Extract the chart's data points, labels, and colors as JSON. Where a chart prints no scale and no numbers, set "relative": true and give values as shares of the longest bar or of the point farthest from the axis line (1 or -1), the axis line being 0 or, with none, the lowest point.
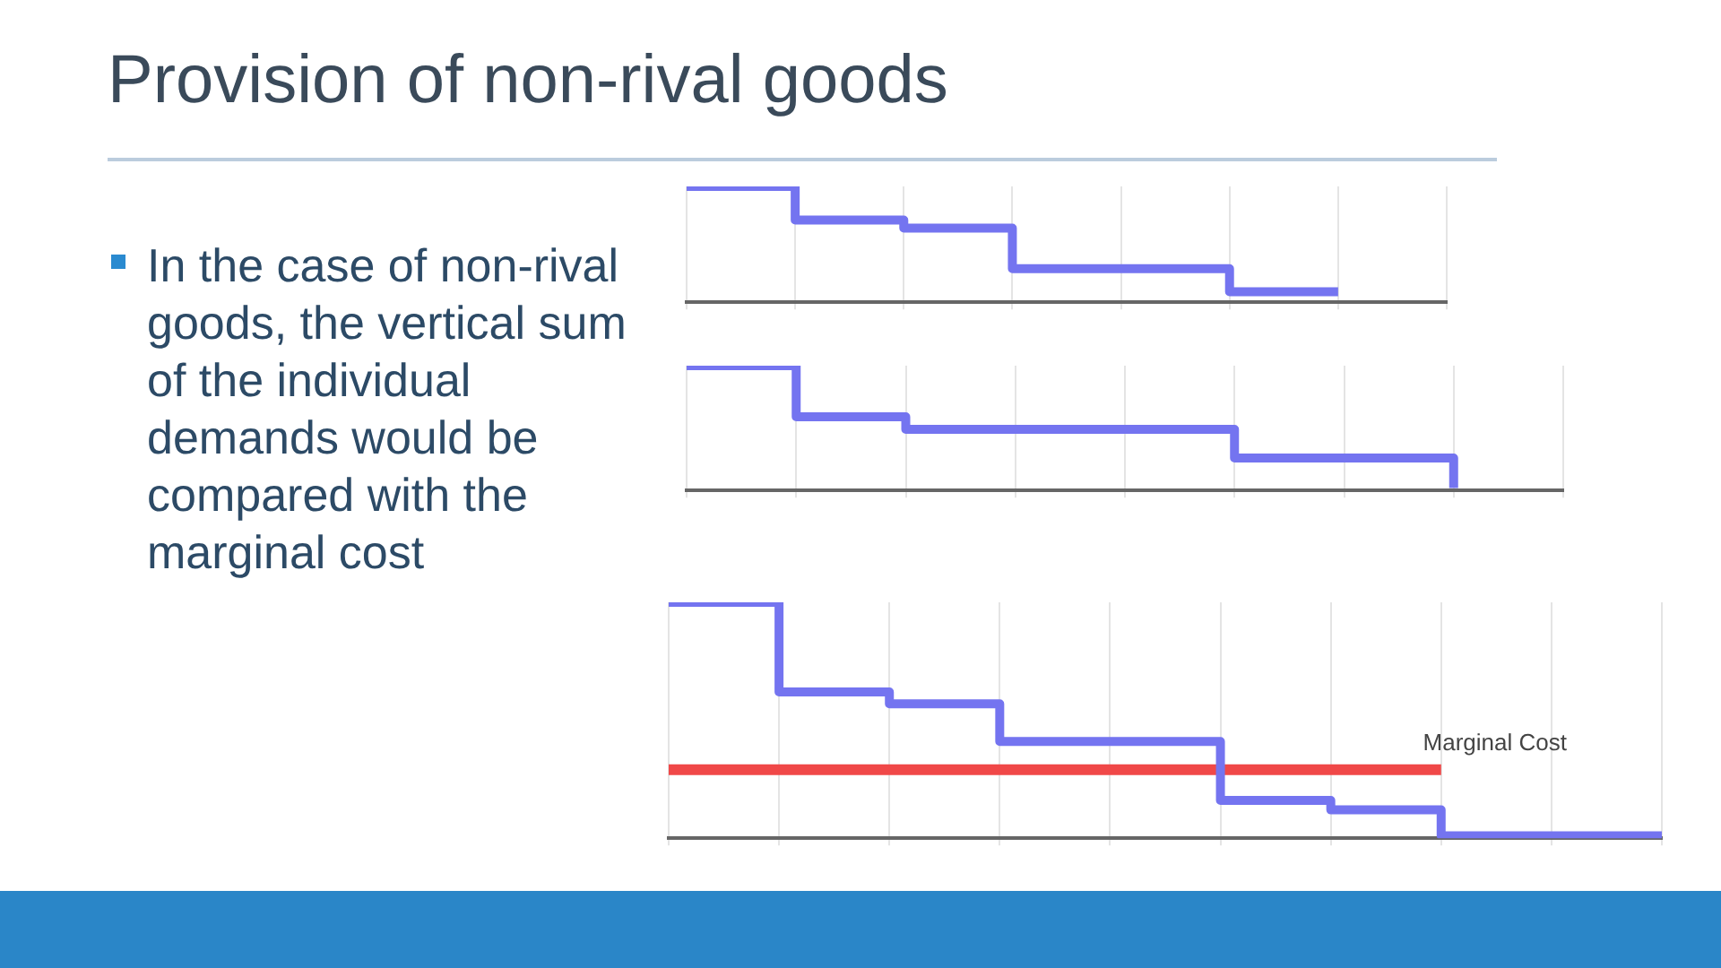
{
  "chart_data": [
    {
      "type": "step",
      "title": "Provision of non-rival goods",
      "annotations": [
        "In the case of non-rival goods, the vertical sum of the individual demands would be compared with the marginal cost"
      ],
      "categories": [
        null,
        null,
        null,
        null,
        null,
        null,
        null,
        null
      ],
      "relative": true,
      "grid": "x",
      "series": [
        {
          "color": "#7474f0",
          "values": [
            1,
            0.71,
            0.64,
            0.29,
            0.29,
            0.09,
            0.09,
            null
          ]
        }
      ]
    },
    {
      "type": "step",
      "categories": [
        null,
        null,
        null,
        null,
        null,
        null,
        null,
        null,
        null
      ],
      "relative": true,
      "grid": "x",
      "series": [
        {
          "color": "#7474f0",
          "values": [
            1,
            0.59,
            0.49,
            0.49,
            0.49,
            0.26,
            0.26,
            0.02,
            null
          ]
        }
      ]
    },
    {
      "type": "step",
      "categories": [
        null,
        null,
        null,
        null,
        null,
        null,
        null,
        null,
        null,
        null
      ],
      "relative": true,
      "grid": "x",
      "series": [
        {
          "color": "#7474f0",
          "values": [
            1,
            0.62,
            0.57,
            0.41,
            0.41,
            0.16,
            0.12,
            0.01,
            0.01,
            0.01
          ]
        },
        {
          "type": "line",
          "name": "Marginal Cost",
          "color": "#f04848",
          "values": [
            0.29,
            0.29,
            0.29,
            0.29,
            0.29,
            0.29,
            0.29,
            0.29,
            null,
            null
          ]
        }
      ]
    }
  ]
}
